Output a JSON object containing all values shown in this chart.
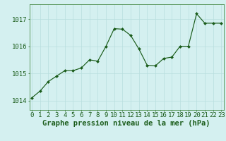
{
  "x": [
    0,
    1,
    2,
    3,
    4,
    5,
    6,
    7,
    8,
    9,
    10,
    11,
    12,
    13,
    14,
    15,
    16,
    17,
    18,
    19,
    20,
    21,
    22,
    23
  ],
  "y": [
    1014.1,
    1014.35,
    1014.7,
    1014.9,
    1015.1,
    1015.1,
    1015.2,
    1015.5,
    1015.45,
    1016.0,
    1016.65,
    1016.63,
    1016.4,
    1015.9,
    1015.3,
    1015.28,
    1015.55,
    1015.6,
    1016.0,
    1016.0,
    1017.2,
    1016.85,
    1016.85,
    1016.85
  ],
  "line_color": "#1a5c1a",
  "marker_color": "#1a5c1a",
  "bg_color": "#d4f0f0",
  "grid_color": "#b8dede",
  "xlabel": "Graphe pression niveau de la mer (hPa)",
  "xlabel_color": "#1a5c1a",
  "ylabel_ticks": [
    1014,
    1015,
    1016,
    1017
  ],
  "xlim": [
    -0.3,
    23.3
  ],
  "ylim": [
    1013.65,
    1017.55
  ],
  "tick_color": "#1a5c1a",
  "border_color": "#4a8c4a",
  "xlabel_fontsize": 7.5,
  "tick_fontsize": 6.5
}
